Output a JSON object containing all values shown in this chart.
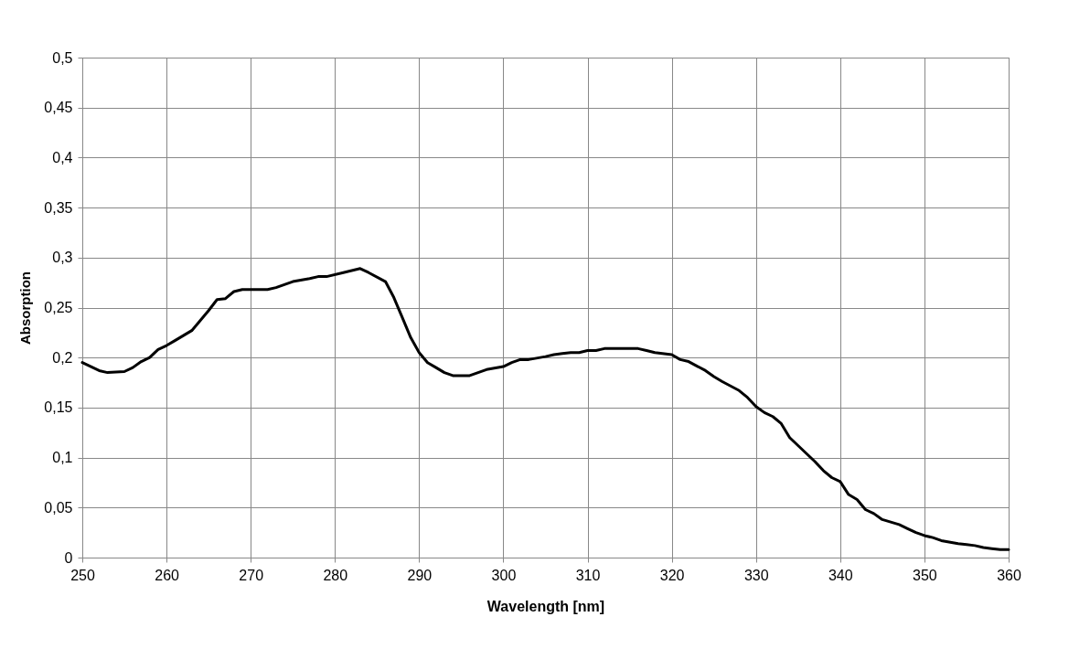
{
  "chart_data": {
    "type": "line",
    "xlabel": "Wavelength [nm]",
    "ylabel": "Absorption",
    "x": [
      250,
      252,
      253,
      255,
      256,
      257,
      258,
      259,
      260,
      261,
      262,
      263,
      264,
      265,
      266,
      267,
      268,
      269,
      272,
      273,
      274,
      275,
      277,
      278,
      279,
      281,
      282,
      283,
      284,
      286,
      287,
      288,
      289,
      290,
      291,
      292,
      293,
      294,
      296,
      297,
      298,
      300,
      301,
      302,
      303,
      305,
      306,
      307,
      308,
      309,
      310,
      311,
      312,
      316,
      317,
      318,
      320,
      321,
      322,
      324,
      325,
      326,
      328,
      329,
      330,
      331,
      332,
      333,
      334,
      335,
      336,
      337,
      338,
      339,
      340,
      341,
      342,
      343,
      344,
      345,
      347,
      348,
      349,
      350,
      351,
      352,
      354,
      355,
      356,
      357,
      358,
      359,
      360
    ],
    "series": [
      {
        "color": "#000000",
        "values": [
          0.195,
          0.187,
          0.185,
          0.186,
          0.19,
          0.196,
          0.2,
          0.208,
          0.212,
          0.217,
          0.222,
          0.227,
          0.237,
          0.247,
          0.258,
          0.259,
          0.266,
          0.268,
          0.268,
          0.27,
          0.273,
          0.276,
          0.279,
          0.281,
          0.281,
          0.285,
          0.287,
          0.289,
          0.285,
          0.276,
          0.26,
          0.24,
          0.22,
          0.205,
          0.195,
          0.19,
          0.185,
          0.182,
          0.182,
          0.185,
          0.188,
          0.191,
          0.195,
          0.198,
          0.198,
          0.201,
          0.203,
          0.204,
          0.205,
          0.205,
          0.207,
          0.207,
          0.209,
          0.209,
          0.207,
          0.205,
          0.203,
          0.198,
          0.196,
          0.187,
          0.181,
          0.176,
          0.167,
          0.16,
          0.151,
          0.145,
          0.141,
          0.134,
          0.12,
          0.112,
          0.104,
          0.096,
          0.087,
          0.08,
          0.076,
          0.063,
          0.058,
          0.048,
          0.044,
          0.038,
          0.033,
          0.029,
          0.025,
          0.022,
          0.02,
          0.017,
          0.014,
          0.013,
          0.012,
          0.01,
          0.009,
          0.008,
          0.008
        ]
      }
    ],
    "xlim": [
      250,
      360
    ],
    "xticks": [
      250,
      260,
      270,
      280,
      290,
      300,
      310,
      320,
      330,
      340,
      350,
      360
    ],
    "ylim": [
      0,
      0.5
    ],
    "yticks": [
      0,
      {
        "value": 0.05,
        "label": "0,05"
      },
      {
        "value": 0.1,
        "label": "0,1"
      },
      {
        "value": 0.15,
        "label": "0,15"
      },
      {
        "value": 0.2,
        "label": "0,2"
      },
      {
        "value": 0.25,
        "label": "0,25"
      },
      {
        "value": 0.3,
        "label": "0,3"
      },
      {
        "value": 0.35,
        "label": "0,35"
      },
      {
        "value": 0.4,
        "label": "0,4"
      },
      {
        "value": 0.45,
        "label": "0,45"
      },
      {
        "value": 0.5,
        "label": "0,5"
      }
    ],
    "grid": true,
    "marker": "none",
    "line_style": "solid"
  }
}
